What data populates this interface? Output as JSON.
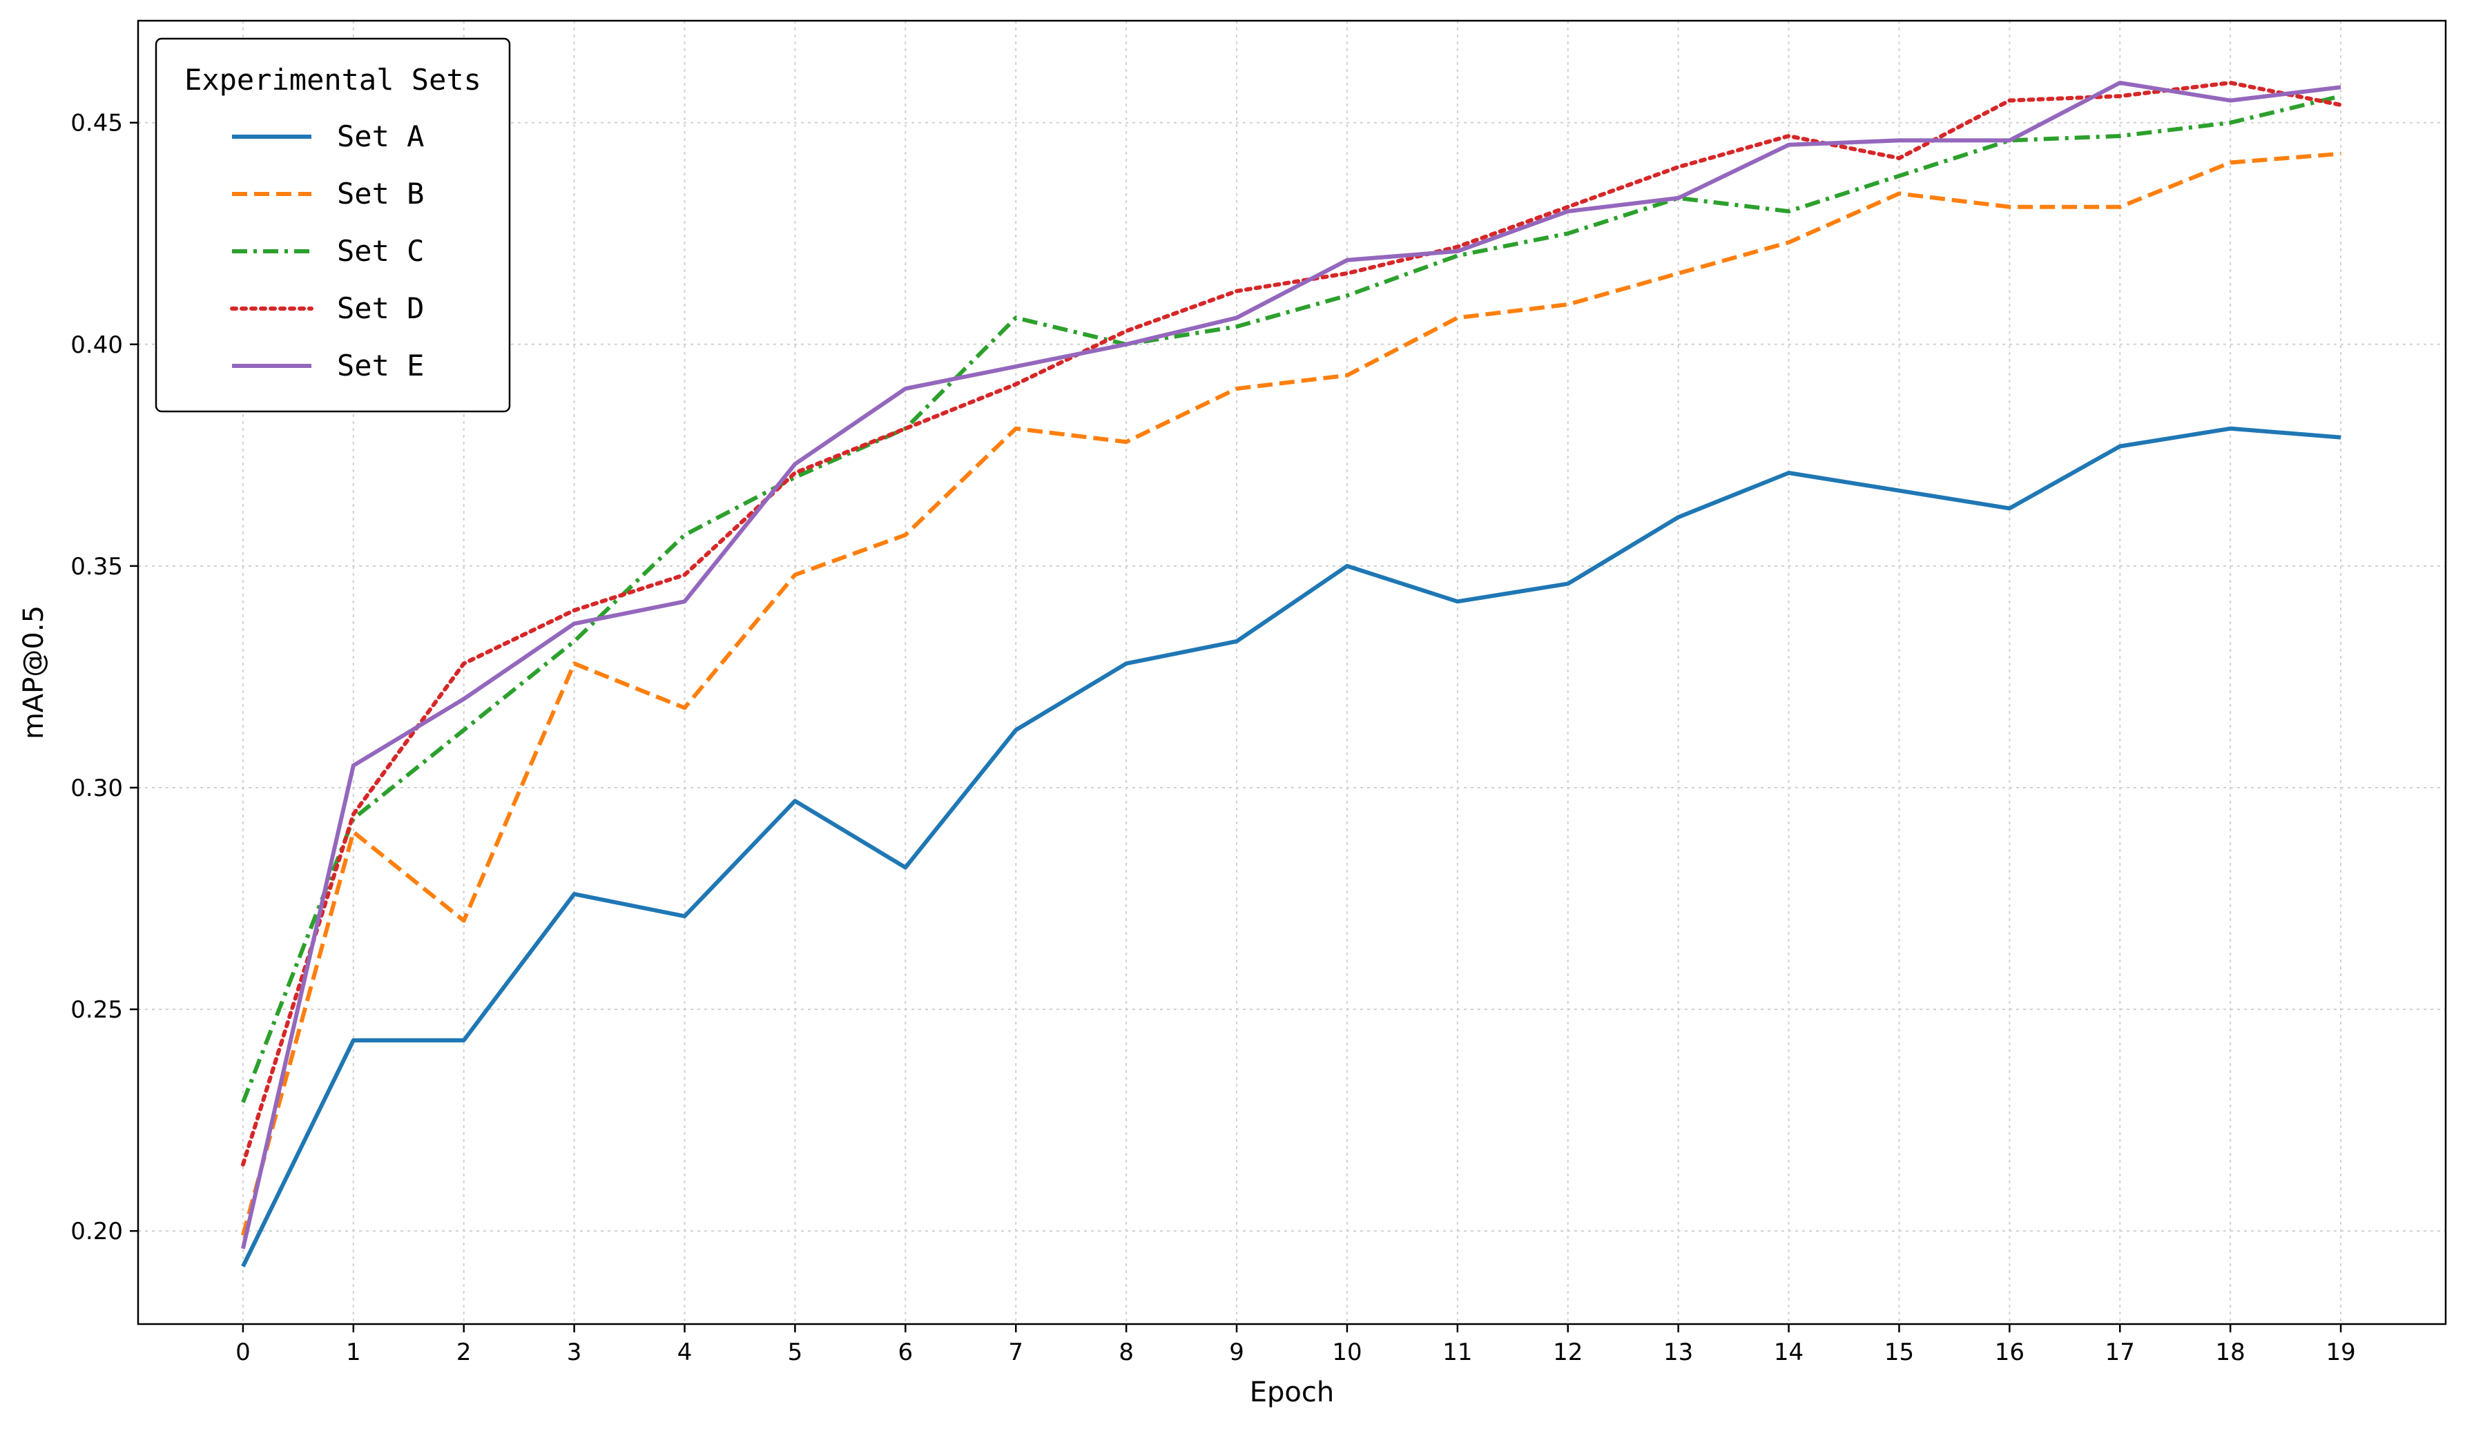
{
  "chart_data": {
    "type": "line",
    "xlabel": "Epoch",
    "ylabel": "mAP@0.5",
    "x": [
      0,
      1,
      2,
      3,
      4,
      5,
      6,
      7,
      8,
      9,
      10,
      11,
      12,
      13,
      14,
      15,
      16,
      17,
      18,
      19
    ],
    "xlim": [
      -0.95,
      19.95
    ],
    "ylim": [
      0.179,
      0.473
    ],
    "yticks": [
      0.2,
      0.25,
      0.3,
      0.35,
      0.4,
      0.45
    ],
    "ytick_labels": [
      "0.20",
      "0.25",
      "0.30",
      "0.35",
      "0.40",
      "0.45"
    ],
    "grid": true,
    "legend": {
      "title": "Experimental Sets",
      "placement": "top-left"
    },
    "series": [
      {
        "name": "Set A",
        "color": "#1f77b4",
        "style": "solid",
        "values": [
          0.192,
          0.243,
          0.243,
          0.276,
          0.271,
          0.297,
          0.282,
          0.313,
          0.328,
          0.333,
          0.35,
          0.342,
          0.346,
          0.361,
          0.371,
          0.367,
          0.363,
          0.377,
          0.381,
          0.379
        ]
      },
      {
        "name": "Set B",
        "color": "#ff7f0e",
        "style": "dashed",
        "values": [
          0.199,
          0.29,
          0.27,
          0.328,
          0.318,
          0.348,
          0.357,
          0.381,
          0.378,
          0.39,
          0.393,
          0.406,
          0.409,
          0.416,
          0.423,
          0.434,
          0.431,
          0.431,
          0.441,
          0.443
        ]
      },
      {
        "name": "Set C",
        "color": "#2ca02c",
        "style": "dashdot",
        "values": [
          0.229,
          0.293,
          0.313,
          0.333,
          0.357,
          0.37,
          0.381,
          0.406,
          0.4,
          0.404,
          0.411,
          0.42,
          0.425,
          0.433,
          0.43,
          0.438,
          0.446,
          0.447,
          0.45,
          0.456
        ]
      },
      {
        "name": "Set D",
        "color": "#d62728",
        "style": "dotted",
        "values": [
          0.215,
          0.294,
          0.328,
          0.34,
          0.348,
          0.371,
          0.381,
          0.391,
          0.403,
          0.412,
          0.416,
          0.422,
          0.431,
          0.44,
          0.447,
          0.442,
          0.455,
          0.456,
          0.459,
          0.454
        ]
      },
      {
        "name": "Set E",
        "color": "#9467bd",
        "style": "solid",
        "values": [
          0.196,
          0.305,
          0.32,
          0.337,
          0.342,
          0.373,
          0.39,
          0.395,
          0.4,
          0.406,
          0.419,
          0.421,
          0.43,
          0.433,
          0.445,
          0.446,
          0.446,
          0.459,
          0.455,
          0.458
        ]
      }
    ]
  }
}
